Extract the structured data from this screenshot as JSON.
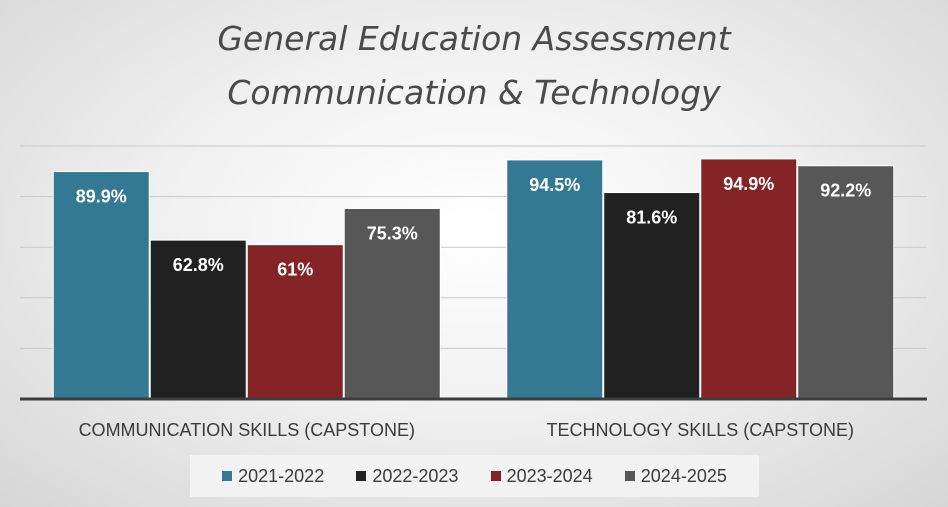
{
  "chart_data": {
    "type": "bar",
    "title_lines": [
      "General Education Assessment",
      "Communication & Technology"
    ],
    "xlabel": "",
    "ylabel": "",
    "categories": [
      "COMMUNICATION SKILLS (CAPSTONE)",
      "TECHNOLOGY SKILLS (CAPSTONE)"
    ],
    "series": [
      {
        "name": "2021-2022",
        "color": "#347994",
        "values": [
          89.9,
          94.5
        ],
        "labels": [
          "89.9%",
          "94.5%"
        ]
      },
      {
        "name": "2022-2023",
        "color": "#212121",
        "values": [
          62.8,
          81.6
        ],
        "labels": [
          "62.8%",
          "81.6%"
        ]
      },
      {
        "name": "2023-2024",
        "color": "#842426",
        "values": [
          61,
          94.9
        ],
        "labels": [
          "61%",
          "94.9%"
        ]
      },
      {
        "name": "2024-2025",
        "color": "#575757",
        "values": [
          75.3,
          92.2
        ],
        "labels": [
          "75.3%",
          "92.2%"
        ]
      }
    ],
    "ylim": [
      0,
      100
    ],
    "grid": true,
    "y_tick_labels_shown": false,
    "legend_position": "bottom",
    "data_label_color": "#ffffff"
  }
}
